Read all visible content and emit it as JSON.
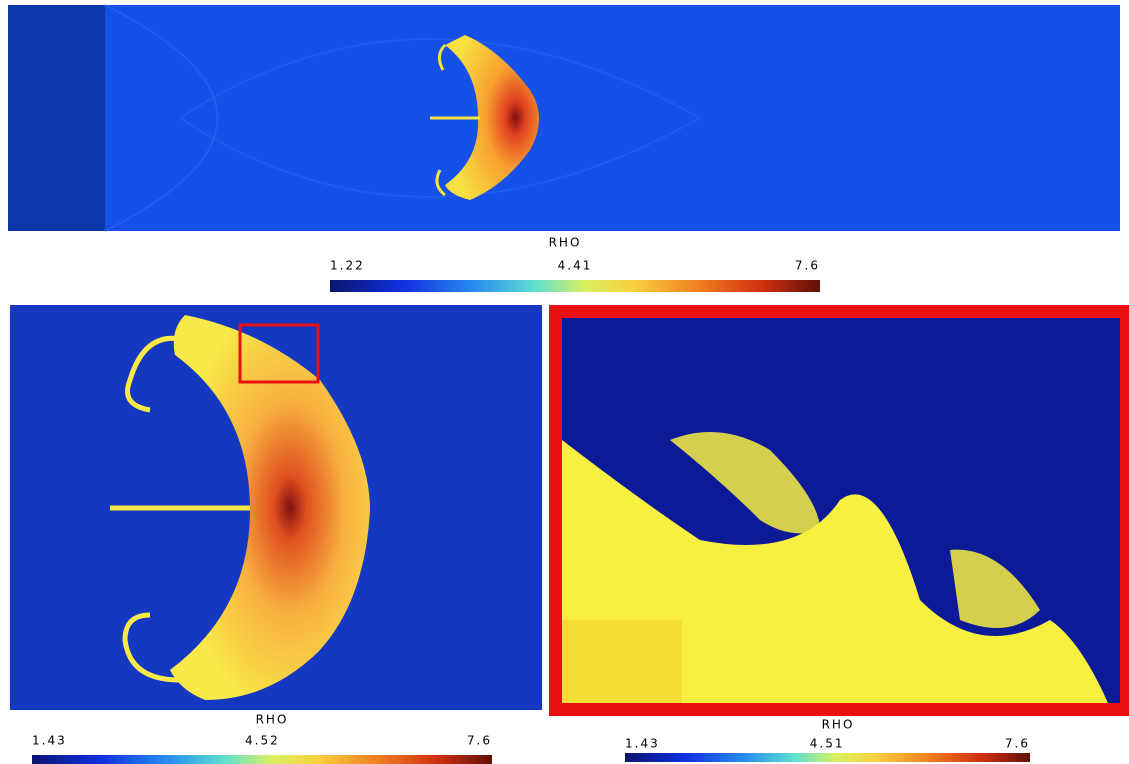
{
  "panels": [
    {
      "colorbar": {
        "label": "RHO",
        "range": [
          1.22,
          7.6
        ],
        "ticks": [
          1.22,
          4.41,
          7.6
        ]
      }
    },
    {
      "colorbar": {
        "label": "RHO",
        "range": [
          1.43,
          7.6
        ],
        "ticks": [
          1.43,
          4.52,
          7.6
        ]
      }
    },
    {
      "colorbar": {
        "label": "RHO",
        "range": [
          1.43,
          7.6
        ],
        "ticks": [
          1.43,
          4.51,
          7.6
        ]
      }
    }
  ]
}
